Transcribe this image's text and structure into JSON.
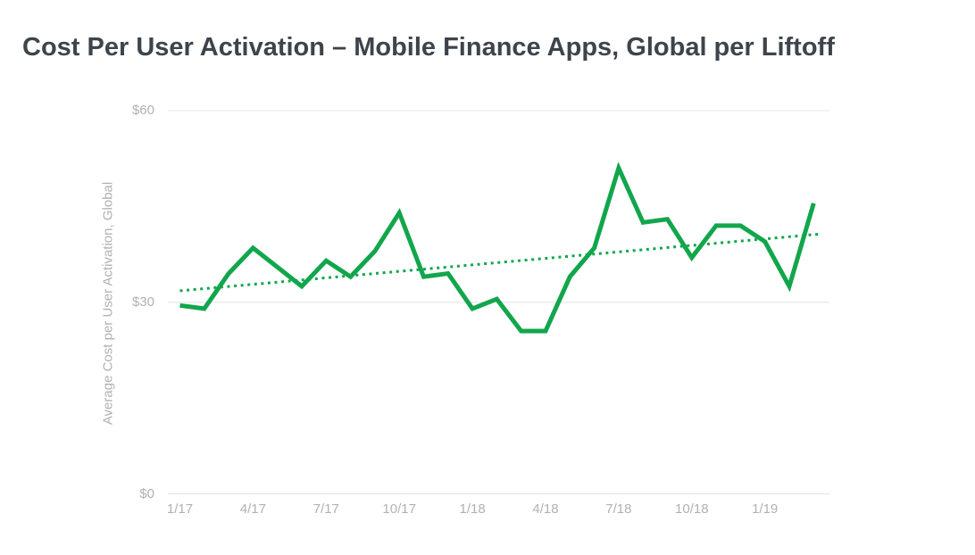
{
  "page": {
    "background": "#ffffff"
  },
  "chart_data": {
    "type": "line",
    "title": "Cost Per User Activation – Mobile Finance Apps, Global per Liftoff",
    "ylabel": "Average Cost per User Activation, Global",
    "xlabel": "",
    "categories": [
      "1/17",
      "2/17",
      "3/17",
      "4/17",
      "5/17",
      "6/17",
      "7/17",
      "8/17",
      "9/17",
      "10/17",
      "11/17",
      "12/17",
      "1/18",
      "2/18",
      "3/18",
      "4/18",
      "5/18",
      "6/18",
      "7/18",
      "8/18",
      "9/18",
      "10/18",
      "11/18",
      "12/18",
      "1/19",
      "2/19",
      "3/19"
    ],
    "series": [
      {
        "name": "Average Cost per User Activation, Global",
        "values": [
          29.5,
          29,
          34.5,
          38.5,
          35.5,
          32.5,
          36.5,
          34,
          38,
          44,
          34,
          34.5,
          29,
          30.5,
          25.5,
          25.5,
          34,
          38.5,
          51,
          42.5,
          43,
          37,
          42,
          42,
          39.5,
          32.5,
          45.5
        ]
      }
    ],
    "trendline": {
      "type": "linear",
      "style": "dotted",
      "start_value": 31.8,
      "end_value": 40.7
    },
    "x_tick_labels": [
      "1/17",
      "4/17",
      "7/17",
      "10/17",
      "1/18",
      "4/18",
      "7/18",
      "10/18",
      "1/19"
    ],
    "y_tick_labels": [
      "$60",
      "$30",
      "$0"
    ],
    "y_tick_values": [
      60,
      30,
      0
    ],
    "ylim": [
      0,
      60
    ],
    "grid": "horizontal",
    "legend": "none",
    "line_color": "#12a64c",
    "trend_color": "#12a64c",
    "gridline_color": "#e4e4e4",
    "axis_text_color": "#b1b1b1",
    "title_color": "#3d444b"
  }
}
